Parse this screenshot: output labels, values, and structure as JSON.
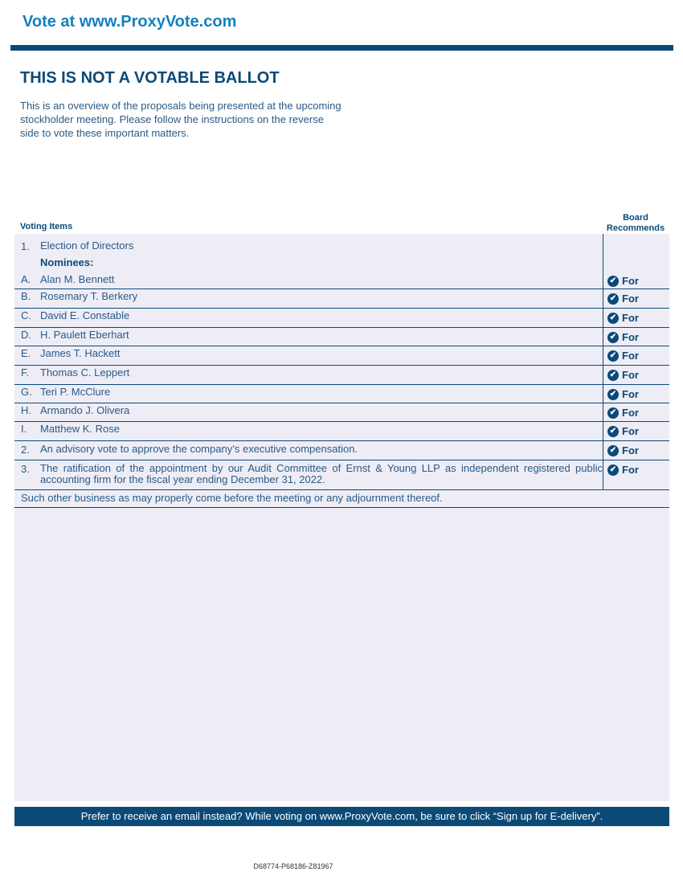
{
  "header": {
    "vote_at": "Vote at www.ProxyVote.com"
  },
  "title": "THIS IS NOT A VOTABLE BALLOT",
  "intro": "This is an overview of the proposals being presented at the upcoming stockholder meeting. Please follow the instructions on the reverse side to vote these important matters.",
  "table": {
    "col_items": "Voting Items",
    "col_board": "Board Recommends",
    "proposal1": {
      "num": "1.",
      "text": "Election of Directors",
      "nominees_label": "Nominees:"
    },
    "nominees": [
      {
        "letter": "A.",
        "name": "Alan M. Bennett",
        "rec": "For"
      },
      {
        "letter": "B.",
        "name": "Rosemary T. Berkery",
        "rec": "For"
      },
      {
        "letter": "C.",
        "name": "David E. Constable",
        "rec": "For"
      },
      {
        "letter": "D.",
        "name": "H. Paulett Eberhart",
        "rec": "For"
      },
      {
        "letter": "E.",
        "name": "James T. Hackett",
        "rec": "For"
      },
      {
        "letter": "F.",
        "name": "Thomas C. Leppert",
        "rec": "For"
      },
      {
        "letter": "G.",
        "name": "Teri P. McClure",
        "rec": "For"
      },
      {
        "letter": "H.",
        "name": "Armando J. Olivera",
        "rec": "For"
      },
      {
        "letter": "I.",
        "name": "Matthew K. Rose",
        "rec": "For"
      }
    ],
    "proposals": [
      {
        "num": "2.",
        "text": "An advisory vote to approve the company’s executive compensation.",
        "rec": "For"
      },
      {
        "num": "3.",
        "text": "The ratification of the appointment by our Audit Committee of Ernst & Young LLP as independent registered public accounting firm for the fiscal year ending December 31, 2022.",
        "rec": "For"
      }
    ],
    "other_business": "Such other business as may properly come before the meeting or any adjournment thereof."
  },
  "footer": {
    "banner": "Prefer to receive an email instead? While voting on www.ProxyVote.com, be sure to click “Sign up for E-delivery”.",
    "code": "D68774-P68186-Z81967"
  },
  "colors": {
    "brand_blue": "#1580bd",
    "navy": "#0b4a77",
    "panel": "#eeedf6"
  },
  "icons": {
    "recommendation": "check-circle-icon"
  }
}
